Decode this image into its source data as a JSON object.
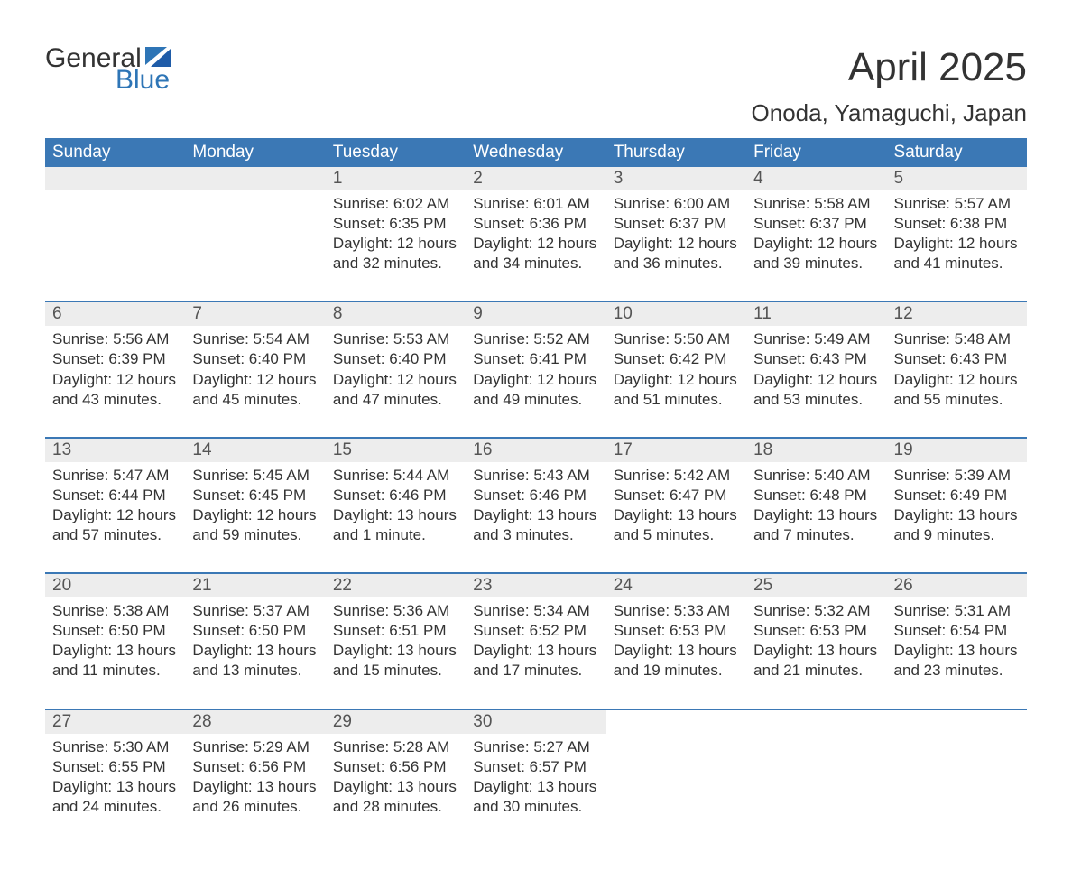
{
  "brand": {
    "word1": "General",
    "word2": "Blue"
  },
  "title": {
    "month": "April 2025",
    "location": "Onoda, Yamaguchi, Japan"
  },
  "colors": {
    "header_bg": "#3b78b5",
    "header_text": "#ffffff",
    "row_border": "#3b78b5",
    "daynum_bg": "#ededed",
    "page_bg": "#ffffff",
    "text": "#333333",
    "brand_blue": "#2e75b6"
  },
  "typography": {
    "month_fontsize": 44,
    "location_fontsize": 26,
    "dayheader_fontsize": 19,
    "daynum_fontsize": 19,
    "body_fontsize": 17
  },
  "calendar": {
    "type": "table",
    "day_headers": [
      "Sunday",
      "Monday",
      "Tuesday",
      "Wednesday",
      "Thursday",
      "Friday",
      "Saturday"
    ],
    "weeks": [
      [
        null,
        null,
        {
          "n": "1",
          "sunrise": "6:02 AM",
          "sunset": "6:35 PM",
          "daylight": "12 hours and 32 minutes."
        },
        {
          "n": "2",
          "sunrise": "6:01 AM",
          "sunset": "6:36 PM",
          "daylight": "12 hours and 34 minutes."
        },
        {
          "n": "3",
          "sunrise": "6:00 AM",
          "sunset": "6:37 PM",
          "daylight": "12 hours and 36 minutes."
        },
        {
          "n": "4",
          "sunrise": "5:58 AM",
          "sunset": "6:37 PM",
          "daylight": "12 hours and 39 minutes."
        },
        {
          "n": "5",
          "sunrise": "5:57 AM",
          "sunset": "6:38 PM",
          "daylight": "12 hours and 41 minutes."
        }
      ],
      [
        {
          "n": "6",
          "sunrise": "5:56 AM",
          "sunset": "6:39 PM",
          "daylight": "12 hours and 43 minutes."
        },
        {
          "n": "7",
          "sunrise": "5:54 AM",
          "sunset": "6:40 PM",
          "daylight": "12 hours and 45 minutes."
        },
        {
          "n": "8",
          "sunrise": "5:53 AM",
          "sunset": "6:40 PM",
          "daylight": "12 hours and 47 minutes."
        },
        {
          "n": "9",
          "sunrise": "5:52 AM",
          "sunset": "6:41 PM",
          "daylight": "12 hours and 49 minutes."
        },
        {
          "n": "10",
          "sunrise": "5:50 AM",
          "sunset": "6:42 PM",
          "daylight": "12 hours and 51 minutes."
        },
        {
          "n": "11",
          "sunrise": "5:49 AM",
          "sunset": "6:43 PM",
          "daylight": "12 hours and 53 minutes."
        },
        {
          "n": "12",
          "sunrise": "5:48 AM",
          "sunset": "6:43 PM",
          "daylight": "12 hours and 55 minutes."
        }
      ],
      [
        {
          "n": "13",
          "sunrise": "5:47 AM",
          "sunset": "6:44 PM",
          "daylight": "12 hours and 57 minutes."
        },
        {
          "n": "14",
          "sunrise": "5:45 AM",
          "sunset": "6:45 PM",
          "daylight": "12 hours and 59 minutes."
        },
        {
          "n": "15",
          "sunrise": "5:44 AM",
          "sunset": "6:46 PM",
          "daylight": "13 hours and 1 minute."
        },
        {
          "n": "16",
          "sunrise": "5:43 AM",
          "sunset": "6:46 PM",
          "daylight": "13 hours and 3 minutes."
        },
        {
          "n": "17",
          "sunrise": "5:42 AM",
          "sunset": "6:47 PM",
          "daylight": "13 hours and 5 minutes."
        },
        {
          "n": "18",
          "sunrise": "5:40 AM",
          "sunset": "6:48 PM",
          "daylight": "13 hours and 7 minutes."
        },
        {
          "n": "19",
          "sunrise": "5:39 AM",
          "sunset": "6:49 PM",
          "daylight": "13 hours and 9 minutes."
        }
      ],
      [
        {
          "n": "20",
          "sunrise": "5:38 AM",
          "sunset": "6:50 PM",
          "daylight": "13 hours and 11 minutes."
        },
        {
          "n": "21",
          "sunrise": "5:37 AM",
          "sunset": "6:50 PM",
          "daylight": "13 hours and 13 minutes."
        },
        {
          "n": "22",
          "sunrise": "5:36 AM",
          "sunset": "6:51 PM",
          "daylight": "13 hours and 15 minutes."
        },
        {
          "n": "23",
          "sunrise": "5:34 AM",
          "sunset": "6:52 PM",
          "daylight": "13 hours and 17 minutes."
        },
        {
          "n": "24",
          "sunrise": "5:33 AM",
          "sunset": "6:53 PM",
          "daylight": "13 hours and 19 minutes."
        },
        {
          "n": "25",
          "sunrise": "5:32 AM",
          "sunset": "6:53 PM",
          "daylight": "13 hours and 21 minutes."
        },
        {
          "n": "26",
          "sunrise": "5:31 AM",
          "sunset": "6:54 PM",
          "daylight": "13 hours and 23 minutes."
        }
      ],
      [
        {
          "n": "27",
          "sunrise": "5:30 AM",
          "sunset": "6:55 PM",
          "daylight": "13 hours and 24 minutes."
        },
        {
          "n": "28",
          "sunrise": "5:29 AM",
          "sunset": "6:56 PM",
          "daylight": "13 hours and 26 minutes."
        },
        {
          "n": "29",
          "sunrise": "5:28 AM",
          "sunset": "6:56 PM",
          "daylight": "13 hours and 28 minutes."
        },
        {
          "n": "30",
          "sunrise": "5:27 AM",
          "sunset": "6:57 PM",
          "daylight": "13 hours and 30 minutes."
        },
        null,
        null,
        null
      ]
    ],
    "labels": {
      "sunrise": "Sunrise: ",
      "sunset": "Sunset: ",
      "daylight": "Daylight: "
    }
  }
}
